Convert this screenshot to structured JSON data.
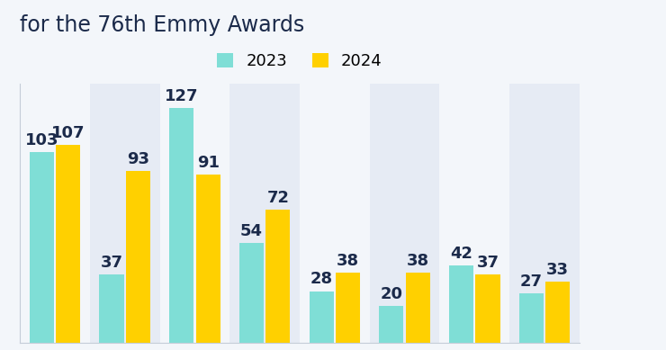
{
  "chart_data": {
    "type": "bar",
    "title": "for the 76th Emmy Awards",
    "categories": [
      null,
      null,
      null,
      null,
      null,
      null,
      null,
      null
    ],
    "series": [
      {
        "name": "2023",
        "color": "#7fded6",
        "values": [
          103,
          37,
          127,
          54,
          28,
          20,
          42,
          27
        ]
      },
      {
        "name": "2024",
        "color": "#ffd000",
        "values": [
          107,
          93,
          91,
          72,
          38,
          38,
          37,
          33
        ]
      }
    ],
    "ylim": [
      0,
      140
    ],
    "data_labels": true,
    "tick_labels": false,
    "legend": "upper center"
  }
}
